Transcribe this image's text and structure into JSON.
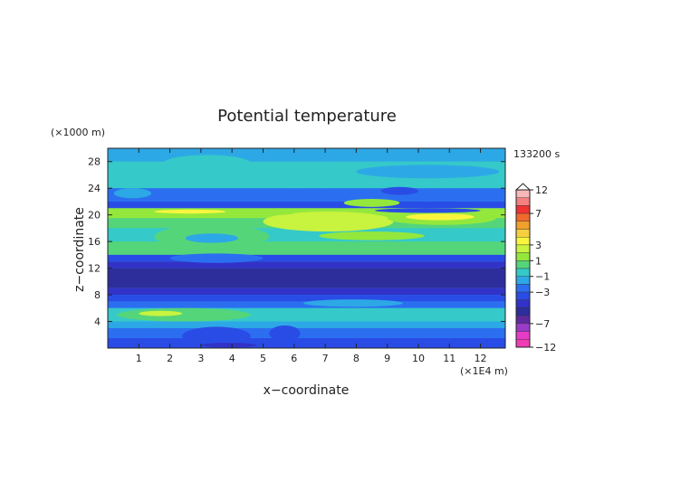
{
  "chart_data": {
    "type": "heatmap",
    "title": "Potential temperature",
    "xlabel": "x−coordinate",
    "ylabel": "z−coordinate",
    "x_unit_label": "(×1E4 m)",
    "y_unit_label": "(×1000 m)",
    "time_label": "133200 s",
    "xlim": [
      0,
      12.8
    ],
    "ylim": [
      0,
      30
    ],
    "x_ticks": [
      "1",
      "2",
      "3",
      "4",
      "5",
      "6",
      "7",
      "8",
      "9",
      "10",
      "11",
      "12"
    ],
    "y_ticks": [
      "4",
      "8",
      "12",
      "16",
      "20",
      "24",
      "28"
    ],
    "colorbar": {
      "labels": [
        "12",
        "7",
        "3",
        "1",
        "−1",
        "−3",
        "−7",
        "−12"
      ],
      "levels": [
        12,
        10,
        8,
        7,
        6,
        5,
        4,
        3,
        2,
        1,
        0,
        -1,
        -2,
        -3,
        -4,
        -5,
        -6,
        -7,
        -8,
        -10,
        -12
      ],
      "colors": [
        "#f6b8b8",
        "#f48080",
        "#f03232",
        "#f06a2c",
        "#f0a02c",
        "#f7cf3e",
        "#f9f53f",
        "#c8f33f",
        "#94e83c",
        "#55d57a",
        "#35c9c9",
        "#2da8e6",
        "#2b6ff0",
        "#2a4ce6",
        "#3232c8",
        "#2d2d9b",
        "#5f2a9e",
        "#9b3cc8",
        "#e63cc8",
        "#f03cb4"
      ]
    },
    "bands": [
      {
        "z": [
          28,
          30
        ],
        "value": -1
      },
      {
        "z": [
          24,
          28
        ],
        "value": 0
      },
      {
        "z": [
          22,
          24
        ],
        "value": -2
      },
      {
        "z": [
          21,
          22
        ],
        "value": -3
      },
      {
        "z": [
          19.5,
          21
        ],
        "value": 2
      },
      {
        "z": [
          18,
          19.5
        ],
        "value": 1
      },
      {
        "z": [
          16,
          18
        ],
        "value": 0
      },
      {
        "z": [
          14,
          16
        ],
        "value": 1
      },
      {
        "z": [
          13,
          14
        ],
        "value": -3
      },
      {
        "z": [
          12,
          13
        ],
        "value": -4
      },
      {
        "z": [
          9,
          12
        ],
        "value": -5
      },
      {
        "z": [
          8,
          9
        ],
        "value": -4
      },
      {
        "z": [
          7,
          8
        ],
        "value": -3
      },
      {
        "z": [
          6,
          7
        ],
        "value": -2
      },
      {
        "z": [
          4,
          6
        ],
        "value": 0
      },
      {
        "z": [
          3,
          4
        ],
        "value": -1
      },
      {
        "z": [
          1.5,
          3
        ],
        "value": -2
      },
      {
        "z": [
          0,
          1.5
        ],
        "value": -3
      }
    ],
    "features": [
      {
        "x": [
          5.0,
          9.2
        ],
        "z": [
          17.5,
          20.5
        ],
        "value": 3
      },
      {
        "x": [
          6.8,
          10.2
        ],
        "z": [
          16.2,
          17.5
        ],
        "value": 2
      },
      {
        "x": [
          9.0,
          12.5
        ],
        "z": [
          18.5,
          20.5
        ],
        "value": 2
      },
      {
        "x": [
          9.6,
          11.8
        ],
        "z": [
          19.2,
          20.2
        ],
        "value": 4
      },
      {
        "x": [
          7.6,
          9.4
        ],
        "z": [
          21.2,
          22.4
        ],
        "value": 2
      },
      {
        "x": [
          0.2,
          6.0
        ],
        "z": [
          19.8,
          20.6
        ],
        "value": 2
      },
      {
        "x": [
          1.5,
          3.8
        ],
        "z": [
          20.2,
          20.8
        ],
        "value": 4
      },
      {
        "x": [
          8.6,
          12.0
        ],
        "z": [
          20.3,
          21.0
        ],
        "value": -3
      },
      {
        "x": [
          5.0,
          8.0
        ],
        "z": [
          24.5,
          26.5
        ],
        "value": 0
      },
      {
        "x": [
          8.0,
          12.6
        ],
        "z": [
          25.5,
          27.5
        ],
        "value": -1
      },
      {
        "x": [
          8.8,
          10.0
        ],
        "z": [
          23.0,
          24.2
        ],
        "value": -3
      },
      {
        "x": [
          1.8,
          4.6
        ],
        "z": [
          26.5,
          29.0
        ],
        "value": 0
      },
      {
        "x": [
          6.0,
          8.5
        ],
        "z": [
          28.0,
          29.6
        ],
        "value": -1
      },
      {
        "x": [
          0.2,
          1.4
        ],
        "z": [
          22.5,
          24.0
        ],
        "value": -1
      },
      {
        "x": [
          2.0,
          5.0
        ],
        "z": [
          12.8,
          14.2
        ],
        "value": -2
      },
      {
        "x": [
          0.3,
          4.6
        ],
        "z": [
          4.0,
          6.0
        ],
        "value": 1
      },
      {
        "x": [
          5.8,
          12.5
        ],
        "z": [
          4.2,
          5.8
        ],
        "value": 0
      },
      {
        "x": [
          6.3,
          9.5
        ],
        "z": [
          6.2,
          7.3
        ],
        "value": -1
      },
      {
        "x": [
          1.0,
          2.4
        ],
        "z": [
          4.8,
          5.6
        ],
        "value": 3
      },
      {
        "x": [
          2.4,
          4.6
        ],
        "z": [
          0.4,
          3.2
        ],
        "value": -3
      },
      {
        "x": [
          5.2,
          6.2
        ],
        "z": [
          1.0,
          3.4
        ],
        "value": -3
      },
      {
        "x": [
          3.0,
          4.8
        ],
        "z": [
          0.1,
          0.8
        ],
        "value": -4
      },
      {
        "x": [
          1.5,
          5.2
        ],
        "z": [
          15.0,
          18.5
        ],
        "value": 1
      },
      {
        "x": [
          2.5,
          4.2
        ],
        "z": [
          15.8,
          17.2
        ],
        "value": -1
      }
    ]
  }
}
